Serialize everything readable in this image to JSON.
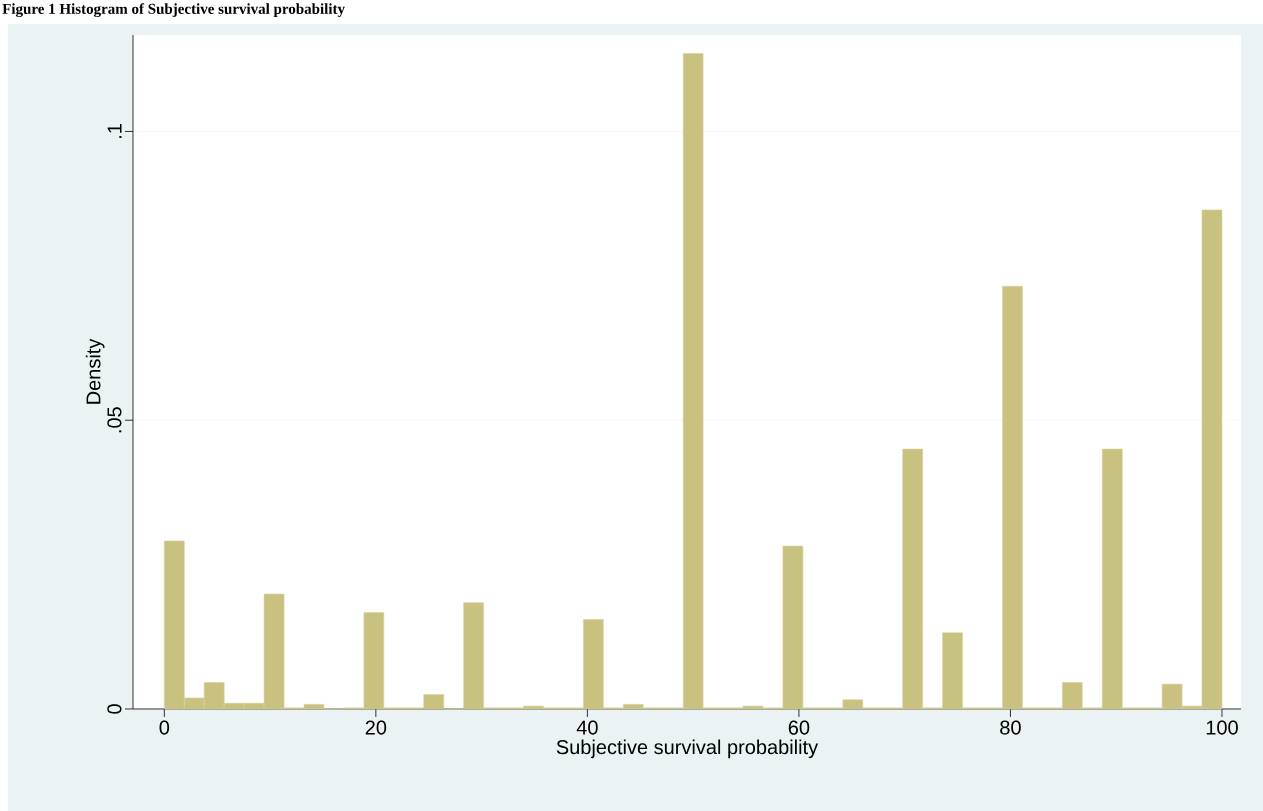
{
  "chart_data": {
    "type": "histogram",
    "title": "Figure 1 Histogram of Subjective survival probability",
    "xlabel": "Subjective survival probability",
    "ylabel": "Density",
    "bins": [
      0,
      1.89,
      3.77,
      5.66,
      7.55,
      9.43,
      11.32,
      13.21,
      15.09,
      16.98,
      18.87,
      20.75,
      22.64,
      24.53,
      26.42,
      28.3,
      30.19,
      32.08,
      33.96,
      35.85,
      37.74,
      39.62,
      41.51,
      43.4,
      45.28,
      47.17,
      49.06,
      50.94,
      52.83,
      54.72,
      56.6,
      58.49,
      60.38,
      62.26,
      64.15,
      66.04,
      67.92,
      69.81,
      71.7,
      73.58,
      75.47,
      77.36,
      79.25,
      81.13,
      83.02,
      84.91,
      86.79,
      88.68,
      90.57,
      92.45,
      94.34,
      96.23,
      98.11,
      100
    ],
    "values": [
      0.0291,
      0.0019,
      0.0046,
      0.001,
      0.001,
      0.0199,
      0.0002,
      0.0008,
      0,
      0.0002,
      0.0167,
      0.0002,
      0.0002,
      0.0025,
      0,
      0.0184,
      0.0002,
      0.0002,
      0.0005,
      0.0002,
      0.0002,
      0.0155,
      0.0002,
      0.0008,
      0.0002,
      0.0002,
      0.1135,
      0.0002,
      0.0002,
      0.0005,
      0.0002,
      0.0282,
      0.0002,
      0.0002,
      0.0016,
      0.0002,
      0.0002,
      0.045,
      0.0002,
      0.0132,
      0.0002,
      0.0002,
      0.0732,
      0.0002,
      0.0002,
      0.0046,
      0.0002,
      0.045,
      0.0002,
      0.0002,
      0.0043,
      0.0005,
      0.0864
    ],
    "color": "#c9c17f",
    "xlim": [
      -2.96,
      101.8
    ],
    "ylim": [
      0,
      0.1167
    ],
    "xticks": [
      0,
      20,
      40,
      60,
      80,
      100
    ],
    "yticks": [
      0,
      {
        "value": 0.05,
        "label": ".05"
      },
      {
        "value": 0.1,
        "label": ".1"
      }
    ],
    "grid": "y"
  }
}
